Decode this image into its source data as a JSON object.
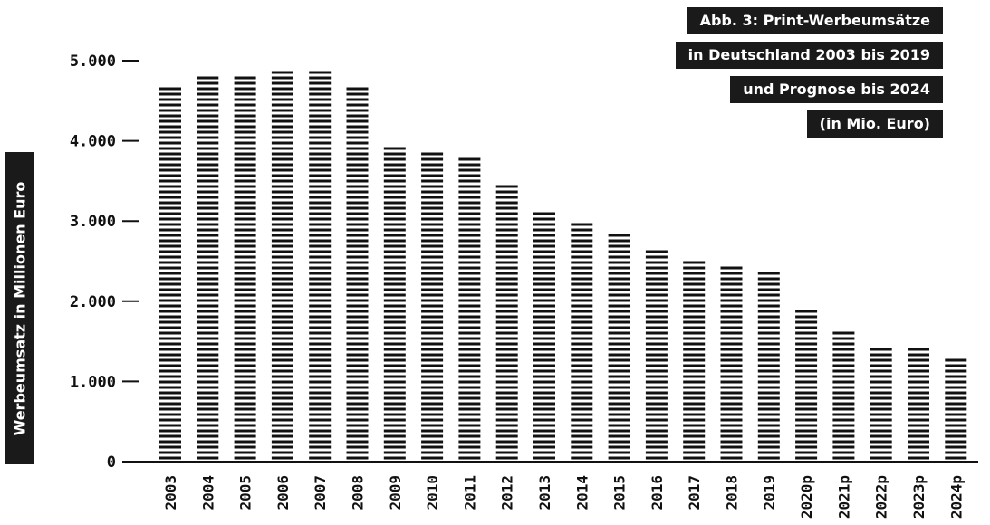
{
  "chart_data": {
    "type": "bar",
    "title_lines": [
      "Abb. 3: Print-Werbeumsätze",
      "in Deutschland 2003 bis 2019",
      "und Prognose bis 2024",
      "(in Mio. Euro)"
    ],
    "ylabel": "Werbeumsatz in Millionen Euro",
    "xlabel": "",
    "ylim": [
      0,
      5000
    ],
    "yticks": [
      0,
      1000,
      2000,
      3000,
      4000,
      5000
    ],
    "ytick_labels": [
      "0",
      "1.000",
      "2.000",
      "3.000",
      "4.000",
      "5.000"
    ],
    "categories": [
      "2003",
      "2004",
      "2005",
      "2006",
      "2007",
      "2008",
      "2009",
      "2010",
      "2011",
      "2012",
      "2013",
      "2014",
      "2015",
      "2016",
      "2017",
      "2018",
      "2019",
      "2020p",
      "2021p",
      "2022p",
      "2023p",
      "2024p"
    ],
    "values": [
      4700,
      4800,
      4800,
      4890,
      4880,
      4700,
      3950,
      3860,
      3770,
      3480,
      3110,
      3010,
      2830,
      2640,
      2550,
      2450,
      2350,
      1890,
      1620,
      1420,
      1420,
      1330
    ],
    "grid": false,
    "legend": "none",
    "bar_color": "#111111"
  }
}
